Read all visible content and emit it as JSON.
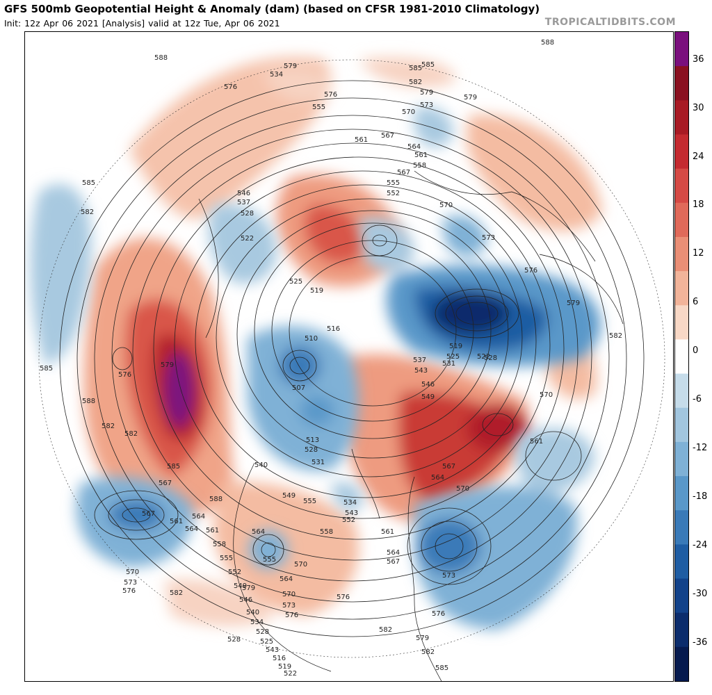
{
  "header": {
    "title": "GFS 500mb Geopotential Height & Anomaly (dam) (based on CFSR 1981-2010 Climatology)",
    "subtitle": "Init: 12z Apr 06 2021   [Analysis]   valid at 12z Tue, Apr 06 2021",
    "brand": "TROPICALTIDBITS.COM"
  },
  "colorbar": {
    "labels": [
      "36",
      "30",
      "24",
      "18",
      "12",
      "6",
      "0",
      "-6",
      "-12",
      "-18",
      "-24",
      "-30",
      "-36"
    ],
    "colors": [
      "#7a0f7d",
      "#8a1020",
      "#a81a24",
      "#c42a30",
      "#d54a45",
      "#e06a5a",
      "#ea8f76",
      "#f2b49a",
      "#f8d8c6",
      "#ffffff",
      "#c6dcea",
      "#a2c6df",
      "#7fb1d6",
      "#5a98c9",
      "#3a7ab8",
      "#1f5da3",
      "#12428a",
      "#0b2c6c",
      "#061a4e"
    ]
  },
  "map": {
    "contour_labels": [
      "588",
      "579",
      "585",
      "582",
      "579",
      "576",
      "573",
      "576",
      "570",
      "567",
      "564",
      "561",
      "558",
      "555",
      "552",
      "546",
      "537",
      "528",
      "522",
      "525",
      "519",
      "516",
      "510",
      "507",
      "513",
      "528",
      "531",
      "540",
      "549",
      "555",
      "534",
      "543",
      "552",
      "558",
      "561",
      "564",
      "567",
      "570",
      "546",
      "549",
      "543",
      "537",
      "531",
      "519",
      "525",
      "528",
      "522",
      "561",
      "564",
      "567",
      "570",
      "573",
      "576",
      "579",
      "582",
      "585",
      "588",
      "555",
      "564",
      "570",
      "573",
      "576",
      "579",
      "582",
      "576",
      "573",
      "570",
      "567",
      "564",
      "561",
      "582",
      "585",
      "576",
      "579",
      "582",
      "567",
      "564",
      "561",
      "558",
      "555",
      "552",
      "549",
      "546",
      "540",
      "534",
      "528",
      "525",
      "543",
      "516",
      "519",
      "522",
      "528",
      "534",
      "555",
      "561",
      "567",
      "570",
      "573",
      "576",
      "579",
      "582",
      "585",
      "588",
      "582",
      "585",
      "588",
      "564",
      "570",
      "576",
      "582",
      "585",
      "579"
    ]
  }
}
